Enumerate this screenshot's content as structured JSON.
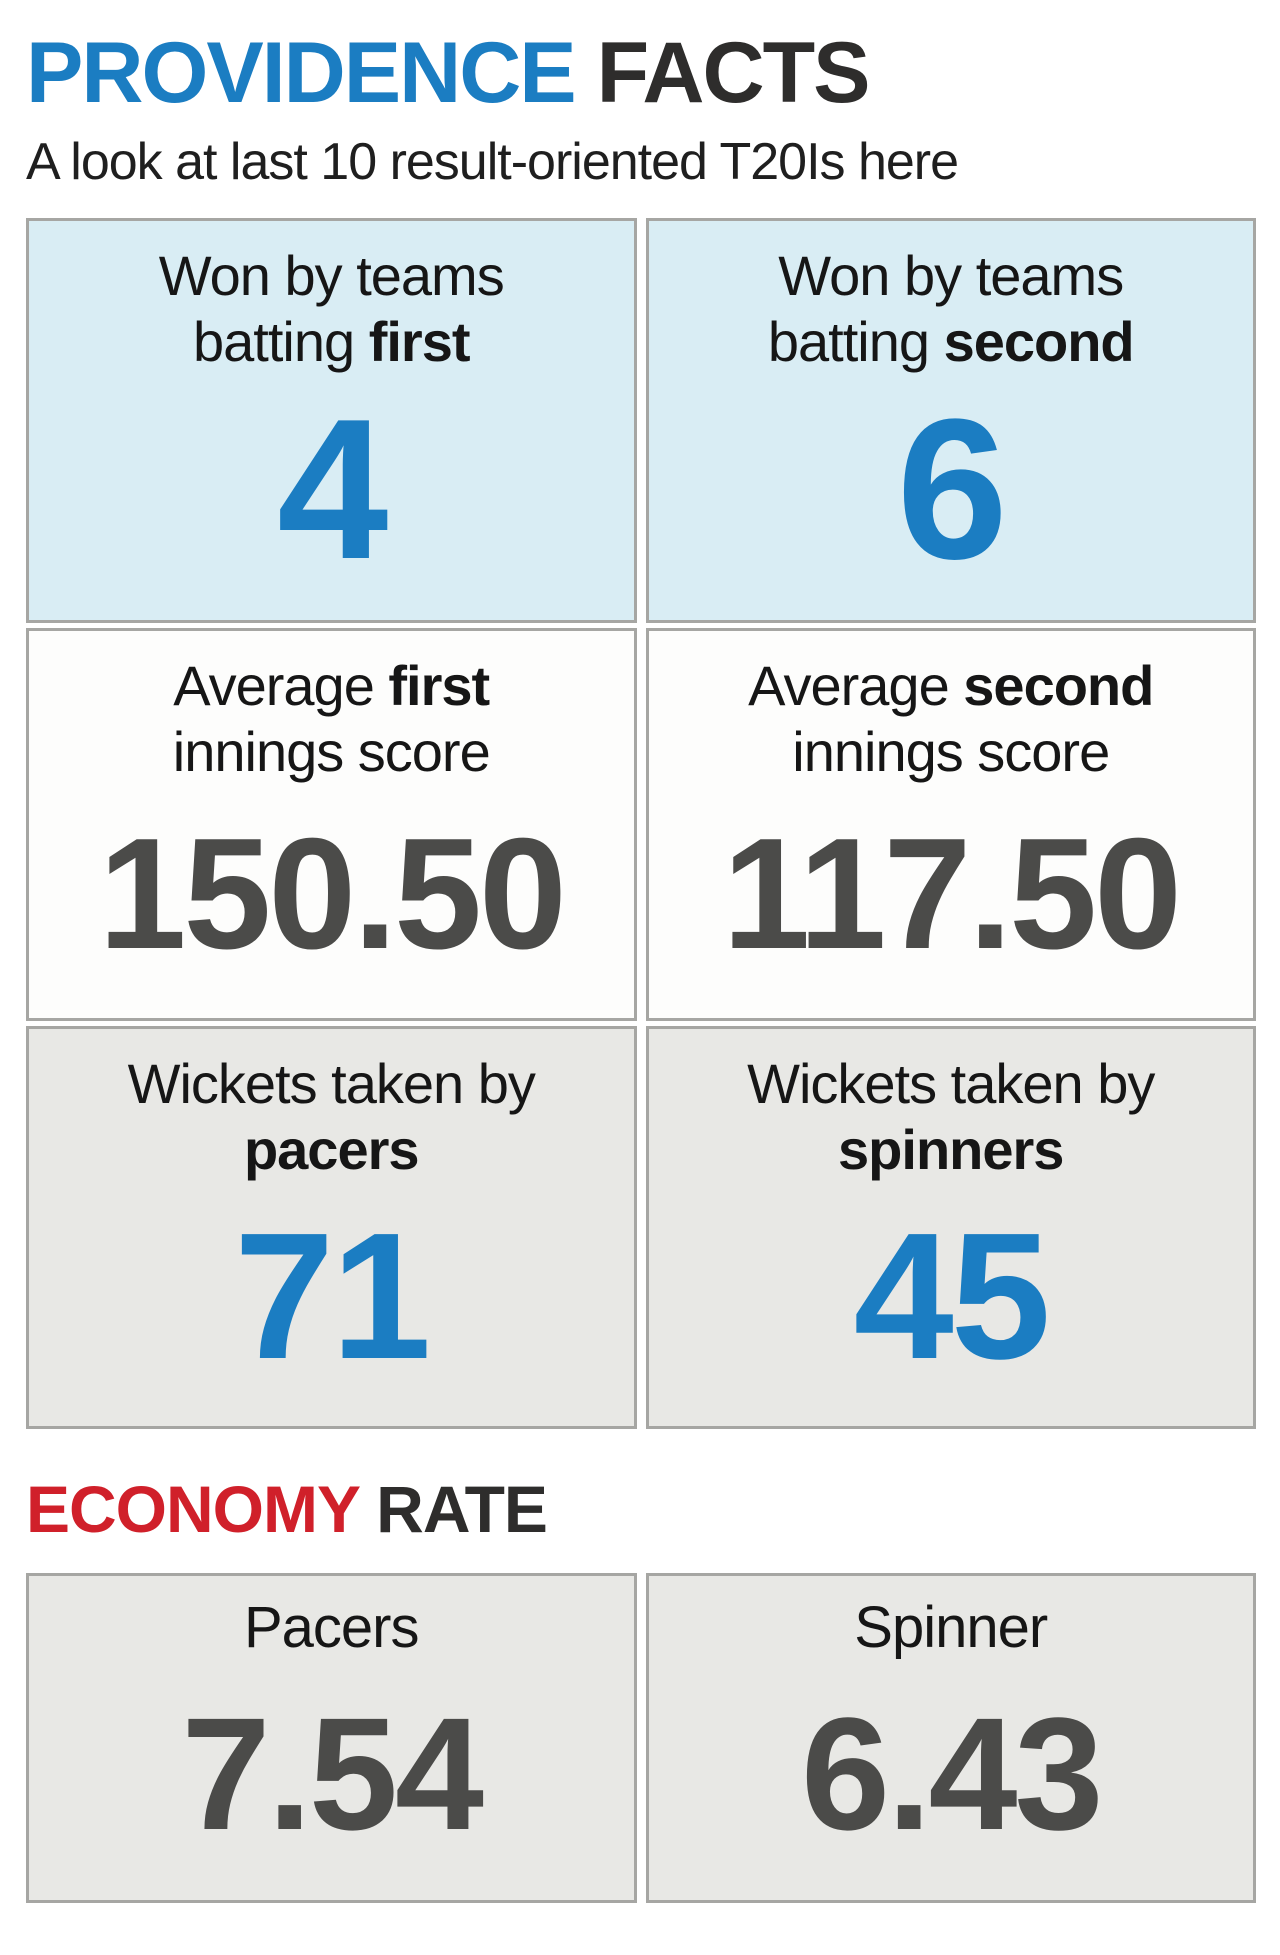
{
  "header": {
    "title_accent": "PROVIDENCE",
    "title_rest": " FACTS",
    "subtitle": "A look at last 10 result-oriented T20Is here"
  },
  "stats": {
    "cells": [
      {
        "l1a": "Won by teams",
        "l1b": "",
        "l2a": "batting ",
        "l2b": "first",
        "value": "4"
      },
      {
        "l1a": "Won by teams",
        "l1b": "",
        "l2a": "batting ",
        "l2b": "second",
        "value": "6"
      },
      {
        "l1a": "Average ",
        "l1b": "first",
        "l2a": "innings score",
        "l2b": "",
        "value": "150.50"
      },
      {
        "l1a": "Average ",
        "l1b": "second",
        "l2a": "innings score",
        "l2b": "",
        "value": "117.50"
      },
      {
        "l1a": "Wickets taken by",
        "l1b": "",
        "l2a": "",
        "l2b": "pacers",
        "value": "71"
      },
      {
        "l1a": "Wickets taken by",
        "l1b": "",
        "l2a": "",
        "l2b": "spinners",
        "value": "45"
      }
    ]
  },
  "economy": {
    "heading_accent": "ECONOMY",
    "heading_rest": " RATE",
    "cells": [
      {
        "label": "Pacers",
        "value": "7.54"
      },
      {
        "label": "Spinner",
        "value": "6.43"
      }
    ]
  },
  "colors": {
    "accent_blue": "#1b7dc2",
    "accent_red": "#d0202a",
    "dark_number": "#4b4b49",
    "row1_bg": "#d9edf4",
    "row2_bg": "#fdfdfc",
    "row3_bg": "#e8e8e5",
    "border": "#a6a6a3"
  },
  "chart_data": {
    "type": "table",
    "title": "PROVIDENCE FACTS",
    "subtitle": "A look at last 10 result-oriented T20Is here",
    "rows": [
      {
        "metric": "Won by teams batting first",
        "value": 4
      },
      {
        "metric": "Won by teams batting second",
        "value": 6
      },
      {
        "metric": "Average first innings score",
        "value": 150.5
      },
      {
        "metric": "Average second innings score",
        "value": 117.5
      },
      {
        "metric": "Wickets taken by pacers",
        "value": 71
      },
      {
        "metric": "Wickets taken by spinners",
        "value": 45
      },
      {
        "metric": "Economy rate — Pacers",
        "value": 7.54
      },
      {
        "metric": "Economy rate — Spinner",
        "value": 6.43
      }
    ]
  }
}
